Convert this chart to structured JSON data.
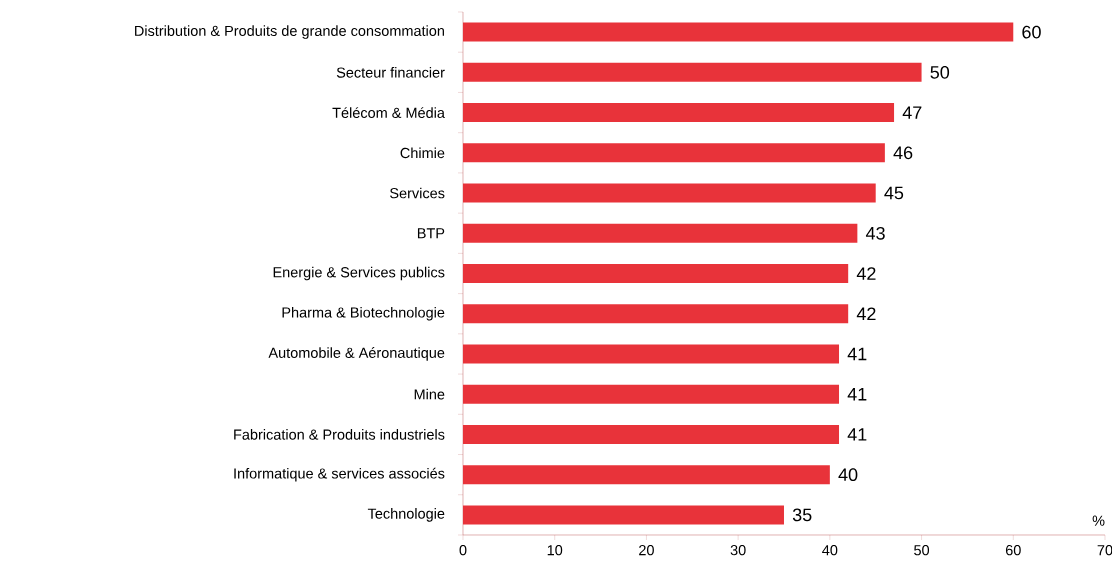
{
  "chart_data": {
    "type": "bar",
    "orientation": "horizontal",
    "categories": [
      "Distribution & Produits de grande consommation",
      "Secteur financier",
      "Télécom & Média",
      "Chimie",
      "Services",
      "BTP",
      "Energie & Services publics",
      "Pharma & Biotechnologie",
      "Automobile & Aéronautique",
      "Mine",
      "Fabrication & Produits industriels",
      "Informatique & services associés",
      "Technologie"
    ],
    "values": [
      60,
      50,
      47,
      46,
      45,
      43,
      42,
      42,
      41,
      41,
      41,
      40,
      35
    ],
    "color": "#e8333a",
    "xlim": [
      0,
      70
    ],
    "xticks": [
      0,
      10,
      20,
      30,
      40,
      50,
      60,
      70
    ],
    "xlabel": "%",
    "data_labels": true
  }
}
